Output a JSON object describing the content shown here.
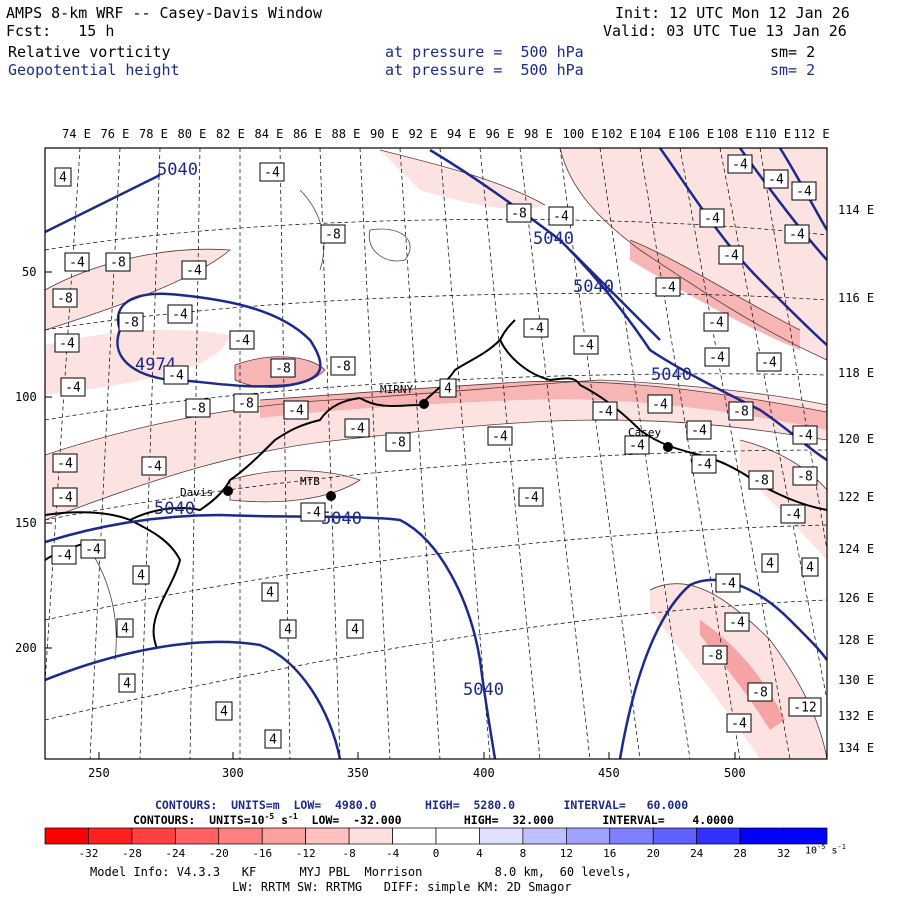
{
  "header": {
    "title": "AMPS 8-km WRF -- Casey-Davis Window",
    "init": "Init: 12 UTC Mon 12 Jan 26",
    "fcst_label": "Fcst:",
    "fcst_value": "15 h",
    "valid": "Valid: 03 UTC Tue 13 Jan 26",
    "field1_name": "Relative vorticity",
    "field1_level": "at pressure =  500 hPa",
    "field1_sm": "sm= 2",
    "field2_name": "Geopotential height",
    "field2_level": "at pressure =  500 hPa",
    "field2_sm": "sm= 2"
  },
  "top_lon_labels": [
    "74 E",
    "76 E",
    "78 E",
    "80 E",
    "82 E",
    "84 E",
    "86 E",
    "88 E",
    "90 E",
    "92 E",
    "94 E",
    "96 E",
    "98 E",
    "100 E",
    "102 E",
    "104 E",
    "106 E",
    "108 E",
    "110 E",
    "112 E"
  ],
  "right_lon_labels": [
    "114 E",
    "116 E",
    "118 E",
    "120 E",
    "122 E",
    "124 E",
    "126 E",
    "128 E",
    "130 E",
    "132 E",
    "134 E"
  ],
  "left_grid_labels": [
    "50",
    "100",
    "150",
    "200"
  ],
  "bottom_grid_labels": [
    "250",
    "300",
    "350",
    "400",
    "450",
    "500"
  ],
  "contour_labels": {
    "height": [
      "5040",
      "5040",
      "5040",
      "4974",
      "5040",
      "5040",
      "5040",
      "5040"
    ],
    "vort_boxes": [
      "4",
      "-4",
      "-8",
      "-4",
      "-8",
      "-4",
      "-4",
      "-8",
      "-4",
      "-8",
      "-4",
      "-4",
      "-8",
      "-4",
      "-8",
      "-4",
      "-8",
      "-8",
      "-4",
      "-4",
      "-8",
      "-4",
      "-4",
      "-4",
      "-4",
      "-4",
      "-8",
      "-4",
      "-4",
      "-4",
      "-4",
      "-4",
      "-4",
      "-4",
      "-4",
      "-4",
      "-4",
      "-4",
      "4",
      "-4",
      "-4",
      "-8",
      "-4",
      "-4",
      "-4",
      "-4",
      "-8",
      "-4",
      "-4",
      "-4",
      "-8",
      "-4",
      "4",
      "4",
      "4",
      "4",
      "4",
      "4",
      "4",
      "4",
      "4",
      "4",
      "-4",
      "-4",
      "-8",
      "-8",
      "-12",
      "-4",
      "-4"
    ]
  },
  "stations": [
    "MIRNY",
    "Casey",
    "Davis",
    "MTB"
  ],
  "footer": {
    "contours1": "CONTOURS:  UNITS=m  LOW=  4980.0       HIGH=  5280.0       INTERVAL=   60.000",
    "contours2": "CONTOURS:  UNITS=10",
    "contours2_sup": "-5",
    "contours2_rest": " s",
    "contours2_sup2": "-1",
    "contours2_tail": "  LOW=  -32.000         HIGH=  32.000       INTERVAL=    4.0000",
    "colorbar_labels": [
      "-32",
      "-28",
      "-24",
      "-20",
      "-16",
      "-12",
      "-8",
      "-4",
      "0",
      "4",
      "8",
      "12",
      "16",
      "20",
      "24",
      "28",
      "32"
    ],
    "colorbar_unit": "10",
    "colorbar_unit_sup": "-5",
    "colorbar_unit_rest": " s",
    "colorbar_unit_sup2": "-1",
    "model_line1": "Model Info: V4.3.3   KF      MYJ PBL  Morrison          8.0 km,  60 levels,",
    "model_line2": "LW: RRTM SW: RRTMG   DIFF: simple KM: 2D Smagor"
  },
  "colors": {
    "height_contour": "#1c2a8c",
    "text_blue": "#1c2a8c",
    "neg_vort_light": "#fde0e0",
    "neg_vort_mid": "#f9b8b8",
    "neg_vort_dark": "#f08a8a",
    "colorbar": [
      "#ff0000",
      "#ff2020",
      "#ff4040",
      "#ff6060",
      "#ff8080",
      "#ffa0a0",
      "#ffc0c0",
      "#ffe0e0",
      "#ffffff",
      "#ffffff",
      "#e0e0ff",
      "#c0c0ff",
      "#a0a0ff",
      "#8080ff",
      "#6060ff",
      "#3030ff",
      "#0000ff"
    ]
  }
}
